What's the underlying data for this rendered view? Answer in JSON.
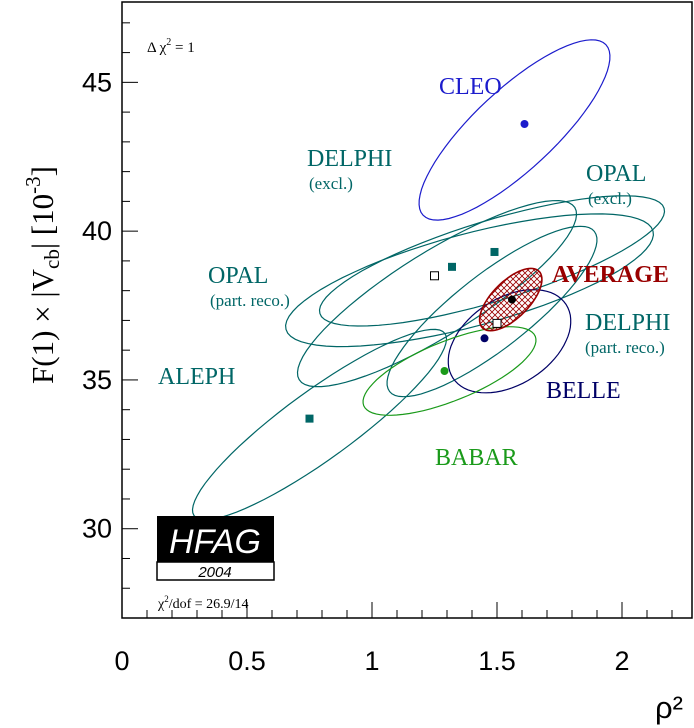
{
  "chart_data": {
    "type": "scatter",
    "xlabel": "ρ²",
    "ylabel_main": "F(1) × |V",
    "ylabel_sub": "cb",
    "ylabel_tail": "| [10",
    "ylabel_exp": "-3",
    "ylabel_close": "]",
    "xlim": [
      0,
      2.28
    ],
    "ylim": [
      27,
      47.7
    ],
    "x_ticks": [
      {
        "value": 0,
        "label": "0"
      },
      {
        "value": 0.5,
        "label": "0.5"
      },
      {
        "value": 1,
        "label": "1"
      },
      {
        "value": 1.5,
        "label": "1.5"
      },
      {
        "value": 2,
        "label": "2"
      }
    ],
    "y_ticks": [
      {
        "value": 30,
        "label": "30"
      },
      {
        "value": 35,
        "label": "35"
      },
      {
        "value": 40,
        "label": "40"
      },
      {
        "value": 45,
        "label": "45"
      }
    ],
    "annotation_delta": "Δ χ",
    "annotation_delta_sup": "2",
    "annotation_delta_tail": " = 1",
    "chi2_label": "χ",
    "chi2_sup": "2",
    "chi2_tail": "/dof = 26.9/14",
    "logo_text": "HFAG",
    "logo_year": "2004",
    "grid": false,
    "series": [
      {
        "name": "CLEO",
        "color": "#1c1ccc",
        "x": 1.61,
        "y": 43.6,
        "marker": "circle",
        "label_lines": [
          "CLEO"
        ],
        "ellipse": {
          "cx": 1.57,
          "cy": 43.4,
          "rx": 0.5,
          "ry": 1.35,
          "angle": -43
        }
      },
      {
        "name": "DELPHI",
        "sublabel": "(excl.)",
        "color": "#006666",
        "x": 1.32,
        "y": 38.8,
        "marker": "square",
        "label_lines": [
          "DELPHI",
          "(excl.)"
        ],
        "ellipse": {
          "cx": 1.39,
          "cy": 38.35,
          "rx": 0.76,
          "ry": 1.55,
          "angle": -15
        }
      },
      {
        "name": "OPAL",
        "sublabel": "(excl.)",
        "color": "#006666",
        "x": 1.49,
        "y": 39.3,
        "marker": "square",
        "label_lines": [
          "OPAL",
          "(excl.)"
        ],
        "ellipse": {
          "cx": 1.48,
          "cy": 39.0,
          "rx": 0.72,
          "ry": 1.35,
          "angle": -17
        }
      },
      {
        "name": "OPAL",
        "sublabel": "(part. reco.)",
        "color": "#006666",
        "x": 1.25,
        "y": 38.5,
        "marker": "square-open",
        "label_lines": [
          "OPAL",
          "(part. reco.)"
        ],
        "ellipse": {
          "cx": 1.26,
          "cy": 37.9,
          "rx": 0.65,
          "ry": 1.4,
          "angle": -32
        }
      },
      {
        "name": "DELPHI",
        "sublabel": "(part. reco.)",
        "color": "#006666",
        "x": 1.5,
        "y": 36.9,
        "marker": "square-open",
        "label_lines": [
          "DELPHI",
          "(part. reco.)"
        ],
        "ellipse": {
          "cx": 1.48,
          "cy": 37.3,
          "rx": 0.52,
          "ry": 1.25,
          "angle": -38
        }
      },
      {
        "name": "ALEPH",
        "color": "#006666",
        "x": 0.75,
        "y": 33.7,
        "marker": "square",
        "label_lines": [
          "ALEPH"
        ],
        "ellipse": {
          "cx": 0.79,
          "cy": 33.5,
          "rx": 0.62,
          "ry": 1.15,
          "angle": -36
        }
      },
      {
        "name": "BELLE",
        "color": "#000066",
        "x": 1.45,
        "y": 36.4,
        "marker": "circle",
        "label_lines": [
          "BELLE"
        ],
        "ellipse": {
          "cx": 1.55,
          "cy": 36.3,
          "rx": 0.27,
          "ry": 1.45,
          "angle": -33
        }
      },
      {
        "name": "BABAR",
        "color": "#1a9a1a",
        "x": 1.29,
        "y": 35.3,
        "marker": "circle",
        "label_lines": [
          "BABAR"
        ],
        "ellipse": {
          "cx": 1.31,
          "cy": 35.3,
          "rx": 0.37,
          "ry": 1.0,
          "angle": -22
        }
      },
      {
        "name": "AVERAGE",
        "color": "#990000",
        "x": 1.56,
        "y": 37.7,
        "marker": "circle-black",
        "label_lines": [
          "AVERAGE"
        ],
        "ellipse": {
          "cx": 1.555,
          "cy": 37.7,
          "rx": 0.16,
          "ry": 0.62,
          "angle": -45
        }
      }
    ]
  }
}
